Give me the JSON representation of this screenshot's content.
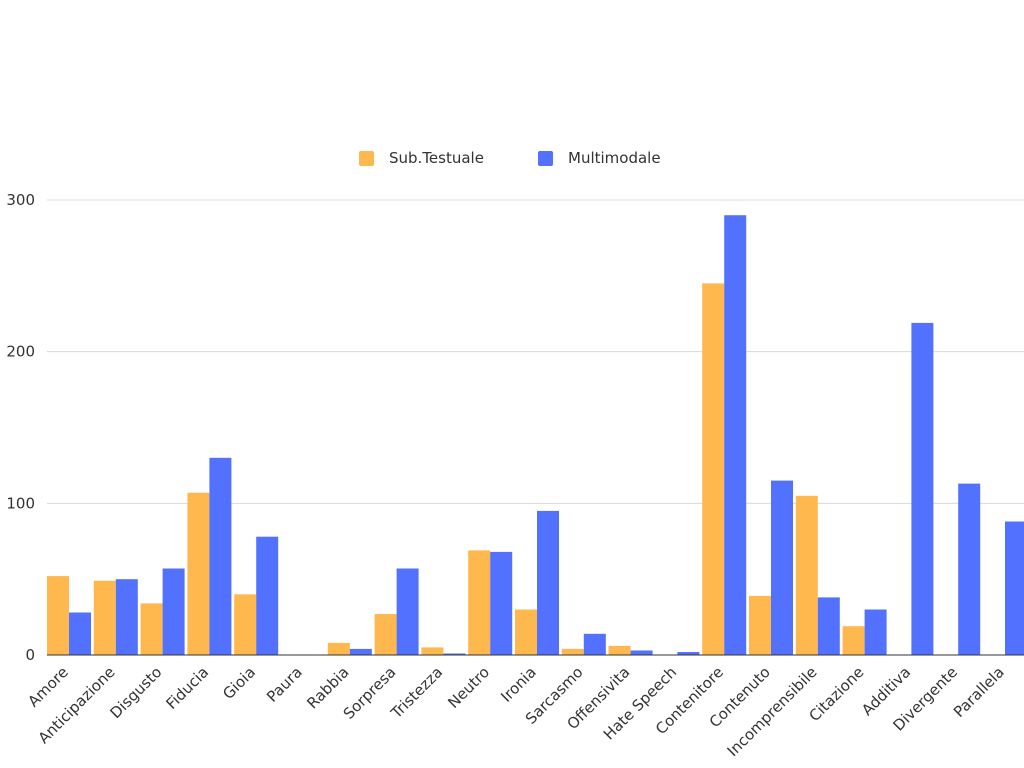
{
  "chart_data": {
    "type": "bar",
    "title": "",
    "xlabel": "",
    "ylabel": "",
    "ylim": [
      0,
      300
    ],
    "yticks": [
      0,
      100,
      200,
      300
    ],
    "grid": true,
    "legend_position": "top-center",
    "categories": [
      "Amore",
      "Anticipazione",
      "Disgusto",
      "Fiducia",
      "Gioia",
      "Paura",
      "Rabbia",
      "Sorpresa",
      "Tristezza",
      "Neutro",
      "Ironia",
      "Sarcasmo",
      "Offensivita",
      "Hate Speech",
      "Contenitore",
      "Contenuto",
      "Incomprensibile",
      "Citazione",
      "Additiva",
      "Divergente",
      "Parallela"
    ],
    "series": [
      {
        "name": "Sub.Testuale",
        "color": "#FFB84D",
        "values": [
          52,
          49,
          34,
          107,
          40,
          0,
          8,
          27,
          5,
          69,
          30,
          4,
          6,
          0,
          245,
          39,
          105,
          19,
          0,
          0,
          0
        ]
      },
      {
        "name": "Multimodale",
        "color": "#5271FF",
        "values": [
          28,
          50,
          57,
          130,
          78,
          0,
          4,
          57,
          1,
          68,
          95,
          14,
          3,
          2,
          290,
          115,
          38,
          30,
          219,
          113,
          88
        ]
      }
    ]
  }
}
